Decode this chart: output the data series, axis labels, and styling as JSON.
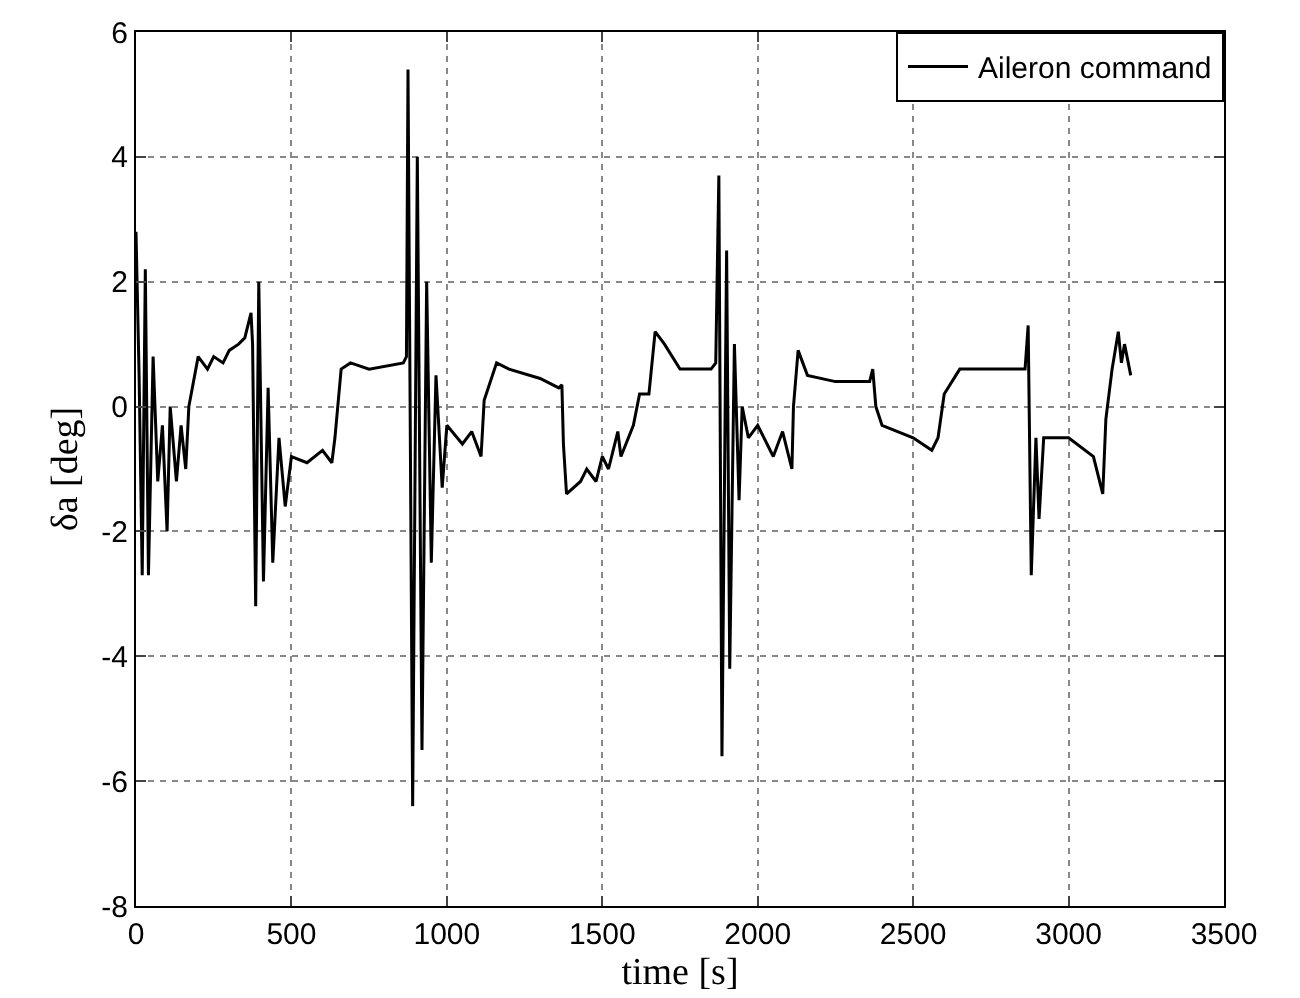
{
  "chart_data": {
    "type": "line",
    "xlabel": "time [s]",
    "ylabel": "δa [deg]",
    "xlim": [
      0,
      3500
    ],
    "xticks": [
      0,
      500,
      1000,
      1500,
      2000,
      2500,
      3000,
      3500
    ],
    "ylim": [
      -8,
      6
    ],
    "yticks": [
      -8,
      -6,
      -4,
      -2,
      0,
      2,
      4,
      6
    ],
    "grid": true,
    "legend": "top right",
    "line_style": "solid",
    "marker": "none",
    "series": [
      {
        "name": "Aileron command",
        "color": "#000000",
        "x": [
          0,
          10,
          20,
          30,
          40,
          55,
          70,
          85,
          100,
          110,
          130,
          145,
          160,
          170,
          200,
          230,
          250,
          280,
          300,
          330,
          350,
          370,
          375,
          385,
          395,
          410,
          425,
          440,
          460,
          480,
          500,
          550,
          600,
          630,
          640,
          660,
          690,
          750,
          860,
          870,
          875,
          890,
          905,
          920,
          935,
          950,
          965,
          985,
          1000,
          1050,
          1080,
          1110,
          1120,
          1160,
          1200,
          1300,
          1360,
          1370,
          1375,
          1385,
          1430,
          1450,
          1480,
          1500,
          1520,
          1550,
          1560,
          1600,
          1620,
          1650,
          1670,
          1700,
          1750,
          1850,
          1865,
          1875,
          1885,
          1900,
          1910,
          1925,
          1940,
          1950,
          1970,
          2000,
          2050,
          2080,
          2110,
          2115,
          2130,
          2160,
          2250,
          2360,
          2370,
          2380,
          2400,
          2450,
          2500,
          2560,
          2580,
          2600,
          2650,
          2800,
          2860,
          2870,
          2880,
          2895,
          2905,
          2920,
          3000,
          3080,
          3110,
          3120,
          3130,
          3140,
          3160,
          3170,
          3180,
          3200
        ],
        "values": [
          2.8,
          0.5,
          -2.7,
          2.2,
          -2.7,
          0.8,
          -1.2,
          -0.3,
          -2.0,
          0.0,
          -1.2,
          -0.3,
          -1.0,
          0.0,
          0.8,
          0.6,
          0.8,
          0.7,
          0.9,
          1.0,
          1.1,
          1.5,
          1.0,
          -3.2,
          2.0,
          -2.8,
          0.3,
          -2.5,
          -0.5,
          -1.6,
          -0.8,
          -0.9,
          -0.7,
          -0.9,
          -0.5,
          0.6,
          0.7,
          0.6,
          0.7,
          0.8,
          5.4,
          -6.4,
          4.0,
          -5.5,
          2.0,
          -2.5,
          0.5,
          -1.3,
          -0.3,
          -0.6,
          -0.4,
          -0.8,
          0.1,
          0.7,
          0.6,
          0.45,
          0.3,
          0.35,
          -0.6,
          -1.4,
          -1.2,
          -1.0,
          -1.2,
          -0.8,
          -1.0,
          -0.4,
          -0.8,
          -0.3,
          0.2,
          0.2,
          1.2,
          1.0,
          0.6,
          0.6,
          0.7,
          3.7,
          -5.6,
          2.5,
          -4.2,
          1.0,
          -1.5,
          0.0,
          -0.5,
          -0.3,
          -0.8,
          -0.4,
          -1.0,
          0.0,
          0.9,
          0.5,
          0.4,
          0.4,
          0.6,
          0.0,
          -0.3,
          -0.4,
          -0.5,
          -0.7,
          -0.5,
          0.2,
          0.6,
          0.6,
          0.6,
          1.3,
          -2.7,
          -0.5,
          -1.8,
          -0.5,
          -0.5,
          -0.8,
          -1.4,
          -0.2,
          0.2,
          0.6,
          1.2,
          0.7,
          1.0,
          0.5
        ]
      }
    ]
  }
}
